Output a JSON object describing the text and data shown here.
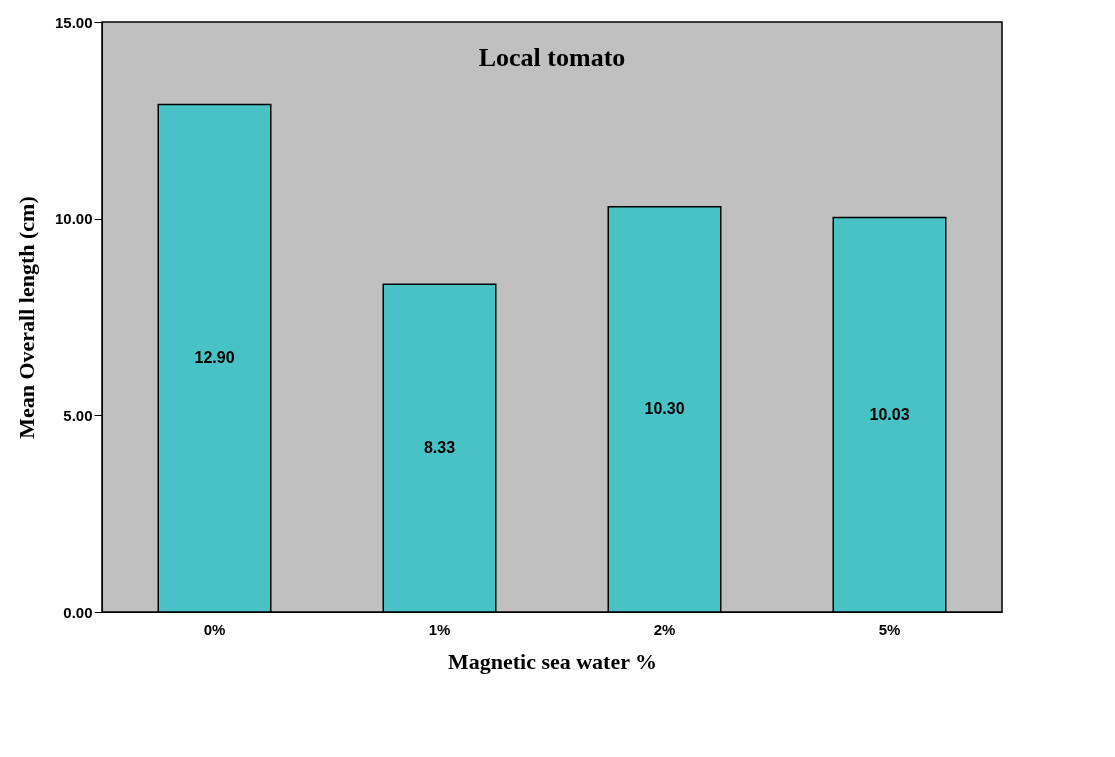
{
  "chart_data": {
    "type": "bar",
    "title": "Local tomato",
    "xlabel": "Magnetic sea water %",
    "ylabel": "Mean Overall length (cm)",
    "categories": [
      "0%",
      "1%",
      "2%",
      "5%"
    ],
    "values": [
      12.9,
      8.33,
      10.3,
      10.03
    ],
    "value_labels": [
      "12.90",
      "8.33",
      "10.30",
      "10.03"
    ],
    "color": "#48c2c5",
    "ylim": [
      0,
      15
    ],
    "yticks": [
      {
        "value": 0,
        "label": "0.00"
      },
      {
        "value": 5,
        "label": "5.00"
      },
      {
        "value": 10,
        "label": "10.00"
      },
      {
        "value": 15,
        "label": "15.00"
      }
    ],
    "grid": false
  }
}
